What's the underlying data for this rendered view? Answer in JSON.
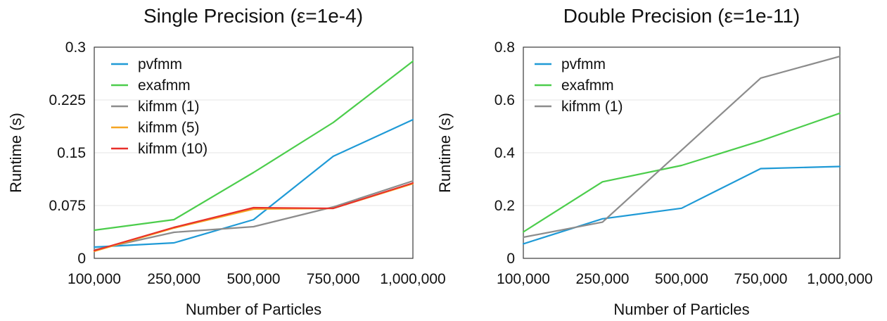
{
  "chart_data": [
    {
      "type": "line",
      "title": "Single Precision (ε=1e-4)",
      "xlabel": "Number of Particles",
      "ylabel": "Runtime (s)",
      "categories": [
        "100,000",
        "250,000",
        "500,000",
        "750,000",
        "1,000,000"
      ],
      "yticks": [
        "0",
        "0.075",
        "0.15",
        "0.225",
        "0.3"
      ],
      "ylim": [
        0,
        0.3
      ],
      "grid": true,
      "legend_position": "top-left",
      "series": [
        {
          "name": "pvfmm",
          "color": "#1f9ad6",
          "values": [
            0.016,
            0.022,
            0.055,
            0.145,
            0.197
          ]
        },
        {
          "name": "exafmm",
          "color": "#4ccd4c",
          "values": [
            0.04,
            0.055,
            0.122,
            0.193,
            0.28
          ]
        },
        {
          "name": "kifmm (1)",
          "color": "#8c8c8c",
          "values": [
            0.012,
            0.037,
            0.045,
            0.073,
            0.11
          ]
        },
        {
          "name": "kifmm (5)",
          "color": "#f5a623",
          "values": [
            0.01,
            0.043,
            0.07,
            0.071,
            0.106
          ]
        },
        {
          "name": "kifmm (10)",
          "color": "#e8302a",
          "values": [
            0.011,
            0.044,
            0.072,
            0.071,
            0.107
          ]
        }
      ]
    },
    {
      "type": "line",
      "title": "Double Precision (ε=1e-11)",
      "xlabel": "Number of Particles",
      "ylabel": "Runtime (s)",
      "categories": [
        "100,000",
        "250,000",
        "500,000",
        "750,000",
        "1,000,000"
      ],
      "yticks": [
        "0",
        "0.2",
        "0.4",
        "0.6",
        "0.8"
      ],
      "ylim": [
        0,
        0.8
      ],
      "grid": true,
      "legend_position": "top-left",
      "series": [
        {
          "name": "pvfmm",
          "color": "#1f9ad6",
          "values": [
            0.055,
            0.15,
            0.19,
            0.34,
            0.348
          ]
        },
        {
          "name": "exafmm",
          "color": "#4ccd4c",
          "values": [
            0.1,
            0.29,
            0.352,
            0.445,
            0.55
          ]
        },
        {
          "name": "kifmm (1)",
          "color": "#8c8c8c",
          "values": [
            0.08,
            0.137,
            0.41,
            0.683,
            0.765
          ]
        }
      ]
    }
  ]
}
